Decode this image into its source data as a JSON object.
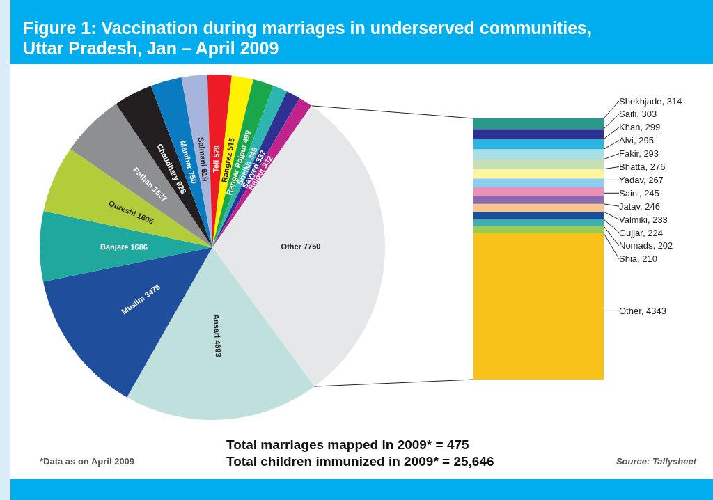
{
  "chart_data": [
    {
      "type": "pie",
      "title": "Figure 1: Vaccination during marriages in underserved communities, Uttar Pradesh, Jan – April 2009",
      "annotations": [
        "*Data as on April 2009",
        "Total marriages mapped in 2009* = 475",
        "Total children immunized in 2009* = 25,646",
        "Source: Tallysheet"
      ],
      "categories": [
        "Other",
        "Ansari",
        "Muslim",
        "Banjare",
        "Qureshi",
        "Pathan",
        "Chaudhary",
        "Manihar",
        "Salmani",
        "Teli",
        "Rangrez",
        "Rangar Rajput",
        "Sheikh",
        "Sayyed",
        "Rajput"
      ],
      "values": [
        7750,
        4693,
        3476,
        1686,
        1606,
        1527,
        928,
        750,
        619,
        579,
        515,
        499,
        349,
        337,
        332
      ],
      "data_labels": true,
      "colors": [
        "#e6e7e8",
        "#bfe0dc",
        "#1f4e9c",
        "#1fa89e",
        "#b2cd3a",
        "#8e8f91",
        "#231f20",
        "#0b7bc1",
        "#a7b5dc",
        "#ed1c24",
        "#fff200",
        "#1aa64a",
        "#2db5b0",
        "#2e3192",
        "#c0238c"
      ]
    },
    {
      "type": "bar",
      "stacked": true,
      "categories": [
        null
      ],
      "series": [
        {
          "color": "#f9c21a",
          "values": [
            4343
          ],
          "value_labels": [
            "Other, 4343"
          ]
        },
        {
          "color": "#9ccc4f",
          "values": [
            210
          ],
          "value_labels": [
            "Shia, 210"
          ]
        },
        {
          "color": "#3fb0b0",
          "values": [
            202
          ],
          "value_labels": [
            "Nomads, 202"
          ]
        },
        {
          "color": "#1c4e9a",
          "values": [
            224
          ],
          "value_labels": [
            "Gujjar, 224"
          ]
        },
        {
          "color": "#f8c58f",
          "values": [
            233
          ],
          "value_labels": [
            "Valmiki, 233"
          ]
        },
        {
          "color": "#8c6bb1",
          "values": [
            246
          ],
          "value_labels": [
            "Jatav, 246"
          ]
        },
        {
          "color": "#ee8fb6",
          "values": [
            245
          ],
          "value_labels": [
            "Saini, 245"
          ]
        },
        {
          "color": "#8ccfee",
          "values": [
            267
          ],
          "value_labels": [
            "Yadav, 267"
          ]
        },
        {
          "color": "#fff59d",
          "values": [
            276
          ],
          "value_labels": [
            "Bhatta, 276"
          ]
        },
        {
          "color": "#c5e0b4",
          "values": [
            293
          ],
          "value_labels": [
            "Fakir, 293"
          ]
        },
        {
          "color": "#a8dfe6",
          "values": [
            295
          ],
          "value_labels": [
            "Alvi, 295"
          ]
        },
        {
          "color": "#29b5e0",
          "values": [
            299
          ],
          "value_labels": [
            "Khan, 299"
          ]
        },
        {
          "color": "#2e3192",
          "values": [
            303
          ],
          "value_labels": [
            "Saifi, 303"
          ]
        },
        {
          "color": "#26998a",
          "values": [
            314
          ],
          "value_labels": [
            "Shekhjade, 314"
          ]
        }
      ]
    }
  ]
}
